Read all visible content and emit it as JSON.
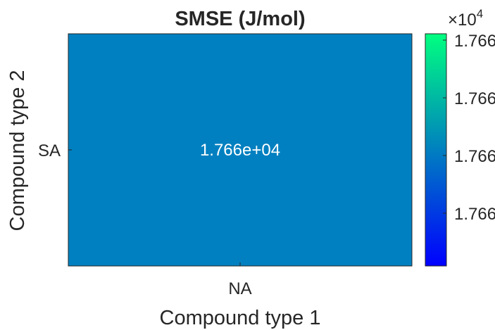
{
  "chart_data": {
    "type": "heatmap",
    "title": "SMSE (J/mol)",
    "xlabel": "Compound type 1",
    "ylabel": "Compound type 2",
    "x_categories": [
      "NA"
    ],
    "y_categories": [
      "SA"
    ],
    "values": [
      [
        17660
      ]
    ],
    "cell_labels": [
      [
        "1.766e+04"
      ]
    ],
    "cell_color": "#0080C0",
    "colorbar": {
      "colormap": "winter",
      "exponent_label": "×10",
      "exponent": "4",
      "tick_labels": [
        "1.766",
        "1.766",
        "1.766",
        "1.766"
      ],
      "color_low": "#0000FF",
      "color_high": "#00FF80"
    }
  }
}
